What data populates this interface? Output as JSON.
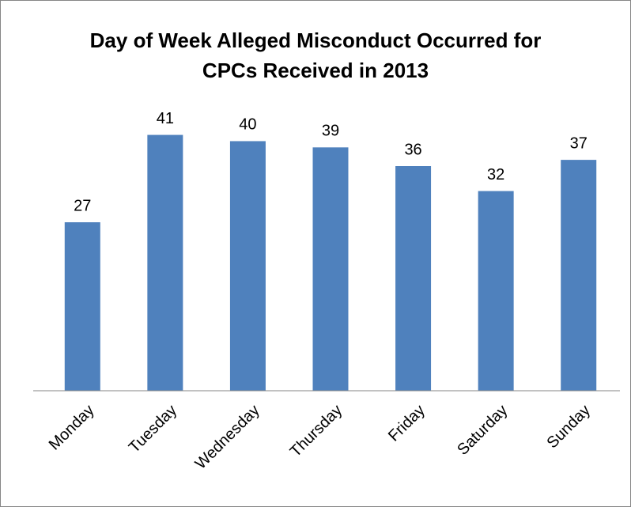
{
  "chart_data": {
    "type": "bar",
    "title": "Day of Week Alleged Misconduct Occurred for CPCs Received in 2013",
    "categories": [
      "Monday",
      "Tuesday",
      "Wednesday",
      "Thursday",
      "Friday",
      "Saturday",
      "Sunday"
    ],
    "values": [
      27,
      41,
      40,
      39,
      36,
      32,
      37
    ],
    "color": "#4f81bd",
    "ylim": [
      0,
      45
    ],
    "grid": false,
    "legend": false,
    "data_labels": true
  }
}
